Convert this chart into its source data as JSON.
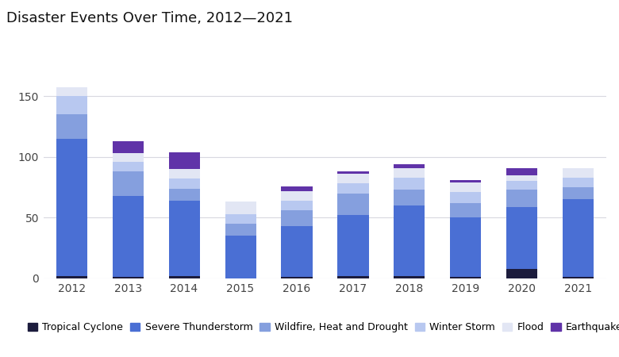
{
  "years": [
    2012,
    2013,
    2014,
    2015,
    2016,
    2017,
    2018,
    2019,
    2020,
    2021
  ],
  "categories": [
    "Tropical Cyclone",
    "Severe Thunderstorm",
    "Wildfire, Heat and Drought",
    "Winter Storm",
    "Flood",
    "Earthquake"
  ],
  "colors": [
    "#1c1c3d",
    "#4a6fd4",
    "#859fde",
    "#b8c8f0",
    "#e2e6f4",
    "#6033a8"
  ],
  "data": {
    "Tropical Cyclone": [
      2,
      1,
      2,
      0,
      1,
      2,
      2,
      1,
      8,
      1
    ],
    "Severe Thunderstorm": [
      113,
      67,
      62,
      35,
      42,
      50,
      58,
      49,
      51,
      64
    ],
    "Wildfire, Heat and Drought": [
      20,
      20,
      10,
      10,
      13,
      18,
      13,
      12,
      14,
      10
    ],
    "Winter Storm": [
      15,
      8,
      8,
      8,
      8,
      8,
      10,
      9,
      7,
      8
    ],
    "Flood": [
      7,
      7,
      8,
      10,
      8,
      8,
      8,
      8,
      5,
      8
    ],
    "Earthquake": [
      0,
      10,
      14,
      0,
      4,
      2,
      3,
      2,
      6,
      0
    ]
  },
  "title": "Disaster Events Over Time, 2012—2021",
  "title_fontsize": 13,
  "yticks": [
    0,
    50,
    100,
    150
  ],
  "ylim": [
    0,
    185
  ],
  "background_color": "#ffffff",
  "grid_color": "#d8d8e0",
  "bar_width": 0.55,
  "legend_fontsize": 9,
  "tick_fontsize": 10,
  "title_color": "#111111",
  "tick_color": "#444444"
}
